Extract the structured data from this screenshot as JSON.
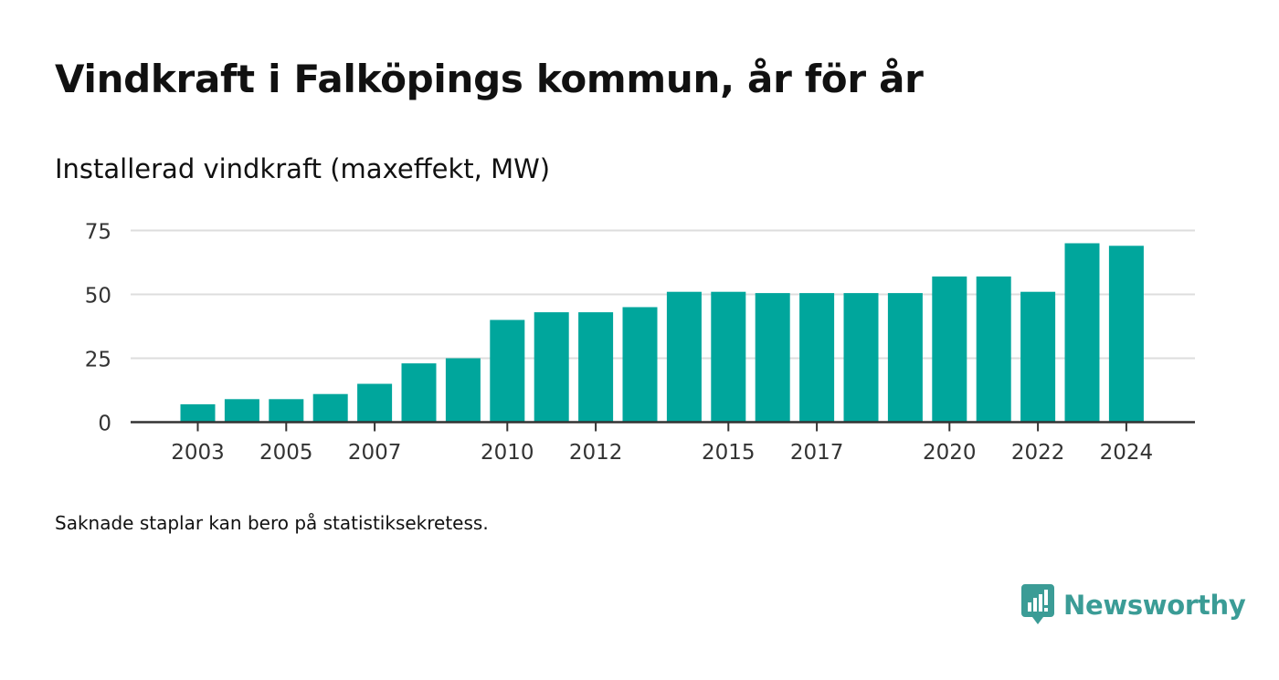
{
  "header": {
    "title": "Vindkraft i Falköpings kommun, år för år",
    "subtitle": "Installerad vindkraft (maxeffekt, MW)"
  },
  "footnote": "Saknade staplar kan bero på statistiksekretess.",
  "brand": {
    "name": "Newsworthy",
    "color": "#3b9c96",
    "icon": "newsworthy-logo-icon"
  },
  "chart_data": {
    "type": "bar",
    "categories": [
      "2003",
      "2004",
      "2005",
      "2006",
      "2007",
      "2008",
      "2009",
      "2010",
      "2011",
      "2012",
      "2013",
      "2014",
      "2015",
      "2016",
      "2017",
      "2018",
      "2019",
      "2020",
      "2021",
      "2022",
      "2023",
      "2024"
    ],
    "values": [
      7,
      9,
      9,
      11,
      15,
      23,
      25,
      40,
      43,
      43,
      45,
      51,
      51,
      50.5,
      50.5,
      50.5,
      50.5,
      57,
      57,
      51,
      70,
      69
    ],
    "x_tick_labels": [
      "2003",
      "2005",
      "2007",
      "2010",
      "2012",
      "2015",
      "2017",
      "2020",
      "2022",
      "2024"
    ],
    "y_ticks": [
      0,
      25,
      50,
      75
    ],
    "ylim": [
      0,
      75
    ],
    "grid": true,
    "bar_color": "#00a69c",
    "title": "Installerad vindkraft (maxeffekt, MW)",
    "xlabel": "",
    "ylabel": ""
  }
}
